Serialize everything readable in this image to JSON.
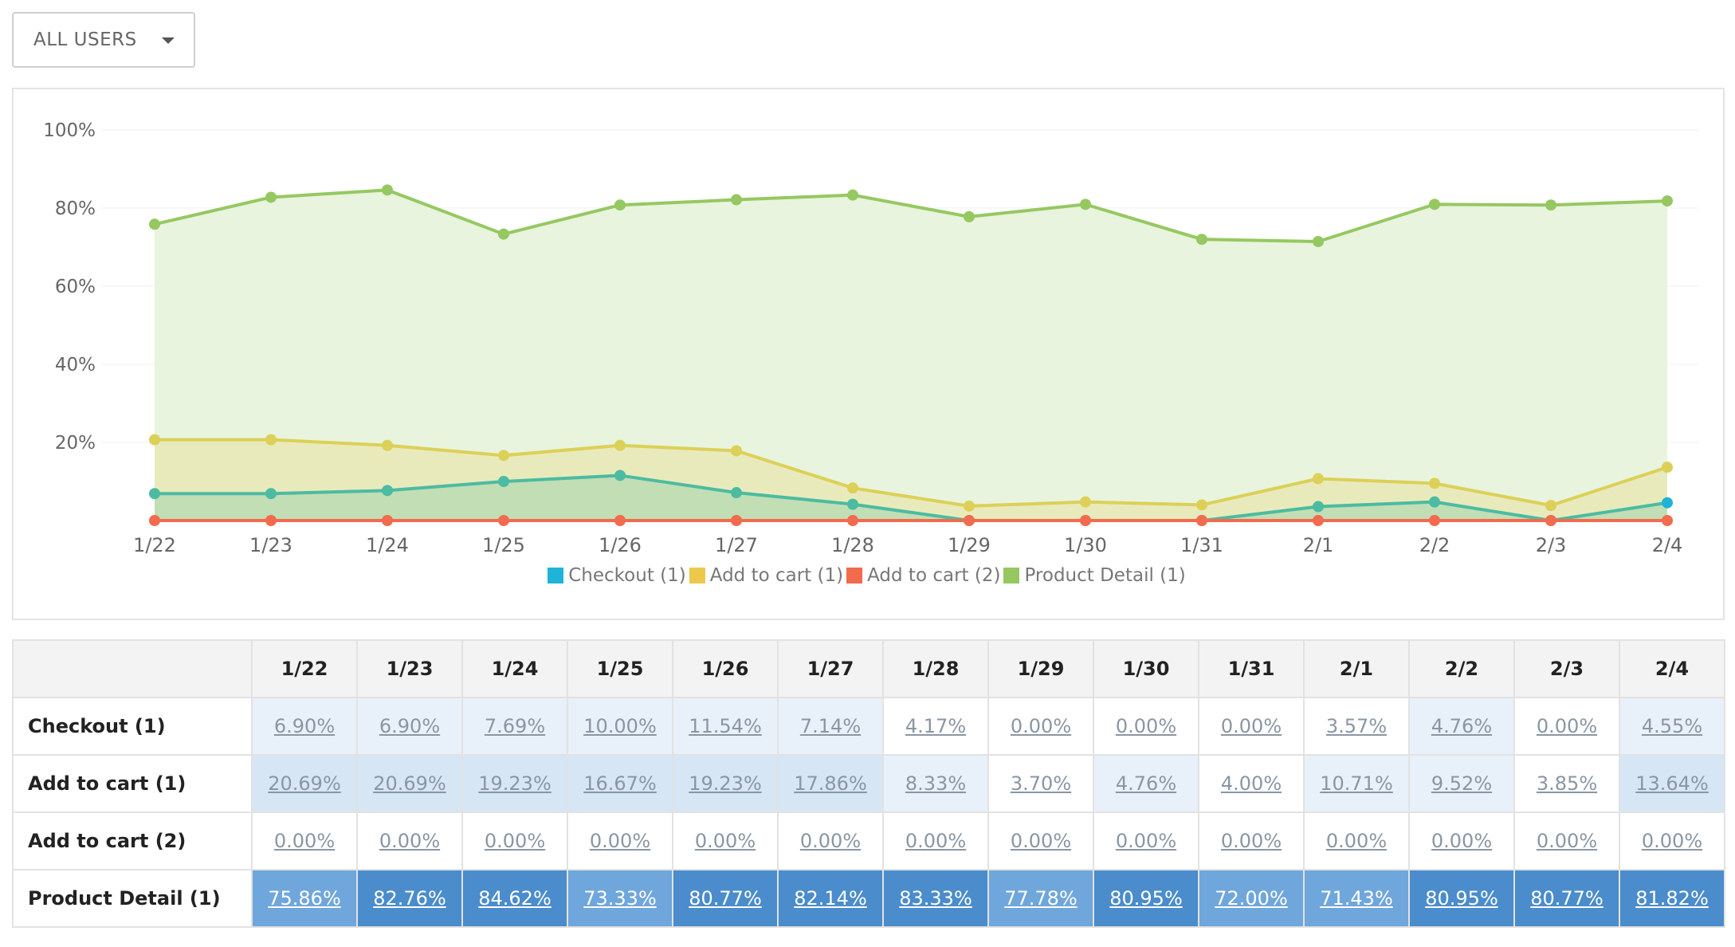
{
  "filter": {
    "selected": "ALL USERS"
  },
  "colors": {
    "checkout1": "#1fb3d8",
    "checkout1_line": "#4cbba1",
    "addcart1": "#ecc94b",
    "addcart1_line": "#dcd058",
    "addcart2": "#f26b4f",
    "product1": "#96c861",
    "product_fill": "#e8f4dd",
    "cell_dark": "#4a8ccc",
    "cell_mid": "#6fa6dc",
    "cell_light": "#d6e6f5",
    "cell_faint": "#e8f0fa"
  },
  "chart_data": {
    "type": "area",
    "x": [
      "1/22",
      "1/23",
      "1/24",
      "1/25",
      "1/26",
      "1/27",
      "1/28",
      "1/29",
      "1/30",
      "1/31",
      "2/1",
      "2/2",
      "2/3",
      "2/4"
    ],
    "yticks": [
      "100%",
      "80%",
      "60%",
      "40%",
      "20%"
    ],
    "ylim": [
      0,
      100
    ],
    "grid": true,
    "legend_position": "bottom",
    "series": [
      {
        "name": "Checkout (1)",
        "values": [
          6.9,
          6.9,
          7.69,
          10.0,
          11.54,
          7.14,
          4.17,
          0.0,
          0.0,
          0.0,
          3.57,
          4.76,
          0.0,
          4.55
        ]
      },
      {
        "name": "Add to cart (1)",
        "values": [
          20.69,
          20.69,
          19.23,
          16.67,
          19.23,
          17.86,
          8.33,
          3.7,
          4.76,
          4.0,
          10.71,
          9.52,
          3.85,
          13.64
        ]
      },
      {
        "name": "Add to cart (2)",
        "values": [
          0,
          0,
          0,
          0,
          0,
          0,
          0,
          0,
          0,
          0,
          0,
          0,
          0,
          0
        ]
      },
      {
        "name": "Product Detail (1)",
        "values": [
          75.86,
          82.76,
          84.62,
          73.33,
          80.77,
          82.14,
          83.33,
          77.78,
          80.95,
          72.0,
          71.43,
          80.95,
          80.77,
          81.82
        ]
      }
    ]
  },
  "table": {
    "columns": [
      "1/22",
      "1/23",
      "1/24",
      "1/25",
      "1/26",
      "1/27",
      "1/28",
      "1/29",
      "1/30",
      "1/31",
      "2/1",
      "2/2",
      "2/3",
      "2/4"
    ],
    "rows": [
      {
        "label": "Checkout (1)",
        "cells": [
          "6.90%",
          "6.90%",
          "7.69%",
          "10.00%",
          "11.54%",
          "7.14%",
          "4.17%",
          "0.00%",
          "0.00%",
          "0.00%",
          "3.57%",
          "4.76%",
          "0.00%",
          "4.55%"
        ]
      },
      {
        "label": "Add to cart (1)",
        "cells": [
          "20.69%",
          "20.69%",
          "19.23%",
          "16.67%",
          "19.23%",
          "17.86%",
          "8.33%",
          "3.70%",
          "4.76%",
          "4.00%",
          "10.71%",
          "9.52%",
          "3.85%",
          "13.64%"
        ]
      },
      {
        "label": "Add to cart (2)",
        "cells": [
          "0.00%",
          "0.00%",
          "0.00%",
          "0.00%",
          "0.00%",
          "0.00%",
          "0.00%",
          "0.00%",
          "0.00%",
          "0.00%",
          "0.00%",
          "0.00%",
          "0.00%",
          "0.00%"
        ]
      },
      {
        "label": "Product Detail (1)",
        "cells": [
          "75.86%",
          "82.76%",
          "84.62%",
          "73.33%",
          "80.77%",
          "82.14%",
          "83.33%",
          "77.78%",
          "80.95%",
          "72.00%",
          "71.43%",
          "80.95%",
          "80.77%",
          "81.82%"
        ]
      }
    ]
  }
}
